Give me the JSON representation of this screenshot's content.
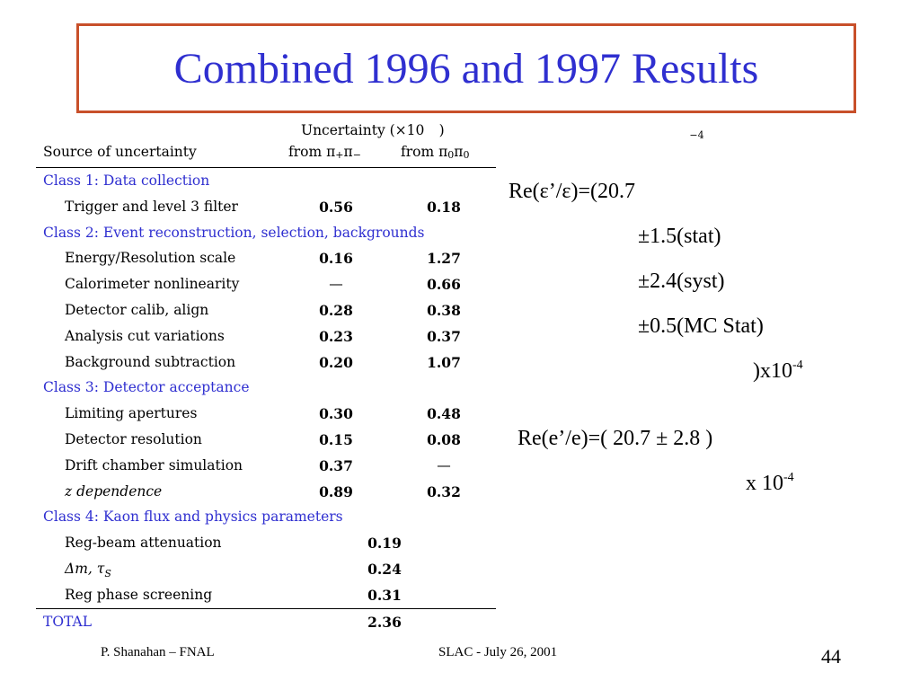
{
  "title": "Combined 1996 and 1997 Results",
  "table": {
    "header_uncertainty": "Uncertainty (×10",
    "header_uncertainty_exp": "−4",
    "header_uncertainty_close": ")",
    "header_source": "Source of uncertainty",
    "header_col1": "from π",
    "header_col1_sup": "+",
    "header_col1_mid": "π",
    "header_col1_sup2": "−",
    "header_col2": "from π",
    "header_col2_sup": "0",
    "header_col2_mid": "π",
    "header_col2_sup2": "0",
    "class1": "Class 1:  Data collection",
    "class2": "Class 2:  Event reconstruction, selection, backgrounds",
    "class3": "Class 3:  Detector acceptance",
    "class4": "Class 4:  Kaon flux and physics parameters",
    "rows1": [
      {
        "label": "Trigger and level 3 filter",
        "v1": "0.56",
        "v2": "0.18"
      }
    ],
    "rows2": [
      {
        "label": "Energy/Resolution scale",
        "v1": "0.16",
        "v2": "1.27"
      },
      {
        "label": "Calorimeter nonlinearity",
        "v1": "—",
        "v2": "0.66"
      },
      {
        "label": "Detector calib, align",
        "v1": "0.28",
        "v2": "0.38"
      },
      {
        "label": "Analysis cut variations",
        "v1": "0.23",
        "v2": "0.37"
      },
      {
        "label": "Background subtraction",
        "v1": "0.20",
        "v2": "1.07"
      }
    ],
    "rows3": [
      {
        "label": "Limiting apertures",
        "v1": "0.30",
        "v2": "0.48"
      },
      {
        "label": "Detector resolution",
        "v1": "0.15",
        "v2": "0.08"
      },
      {
        "label": "Drift chamber simulation",
        "v1": "0.37",
        "v2": "—"
      },
      {
        "label": "z dependence",
        "v1": "0.89",
        "v2": "0.32"
      }
    ],
    "rows4": [
      {
        "label": "Reg-beam attenuation",
        "v": "0.19"
      },
      {
        "label": "Δm, τ",
        "label_sub": "S",
        "v": "0.24"
      },
      {
        "label": "Reg phase screening",
        "v": "0.31"
      }
    ],
    "total_label": "TOTAL",
    "total_value": "2.36"
  },
  "result1": {
    "line1": "Re(ε’/ε)=(20.7",
    "line2": "±1.5(stat)",
    "line3": "±2.4(syst)",
    "line4": "±0.5(MC Stat)",
    "line5": ")x10",
    "line5_exp": "-4"
  },
  "result2": {
    "line1": "Re(e’/e)=( 20.7 ± 2.8 )",
    "line2": "x 10",
    "line2_exp": "-4"
  },
  "footer": {
    "left": "P. Shanahan – FNAL",
    "center": "SLAC  -  July 26, 2001",
    "page": "44"
  }
}
